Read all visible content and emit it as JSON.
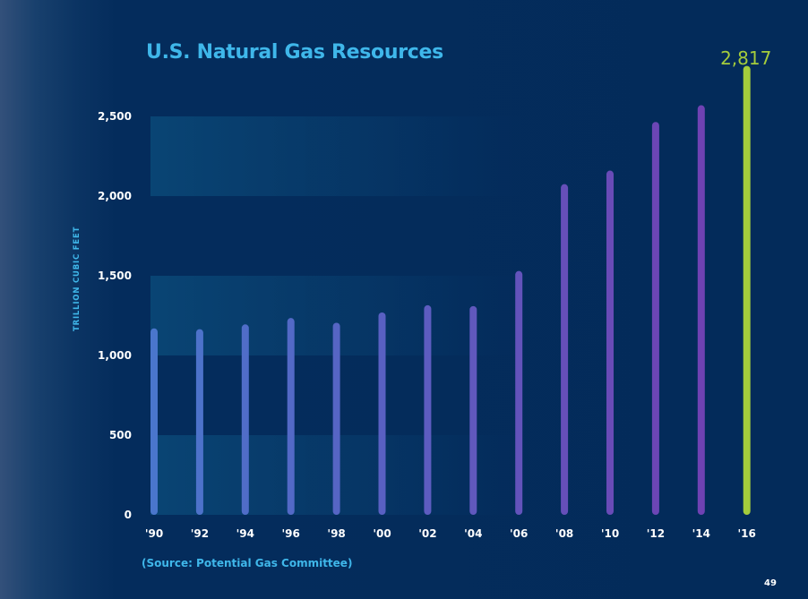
{
  "slide": {
    "page_number": "49",
    "source": "(Source: Potential Gas Committee)"
  },
  "chart_data": {
    "type": "bar",
    "title": "U.S. Natural Gas Resources",
    "ylabel": "TRILLION CUBIC FEET",
    "xlabel": "",
    "categories": [
      "'90",
      "'92",
      "'94",
      "'96",
      "'98",
      "'00",
      "'02",
      "'04",
      "'06",
      "'08",
      "'10",
      "'12",
      "'14",
      "'16"
    ],
    "values": [
      1170,
      1165,
      1195,
      1235,
      1205,
      1270,
      1315,
      1310,
      1530,
      2075,
      2160,
      2465,
      2570,
      2817
    ],
    "ylim": [
      0,
      2817
    ],
    "yticks": [
      0,
      500,
      1000,
      1500,
      2000,
      2500
    ],
    "ytick_labels": [
      "0",
      "500",
      "1,000",
      "1,500",
      "2,000",
      "2,500"
    ],
    "highlight": {
      "category": "'16",
      "label": "2,817"
    },
    "grid": false,
    "colors": {
      "bar_start": "#4a76cc",
      "bar_end": "#6f42b3",
      "highlight": "#a4cc3c",
      "title": "#3fb7ea",
      "text": "#ffffff"
    }
  }
}
